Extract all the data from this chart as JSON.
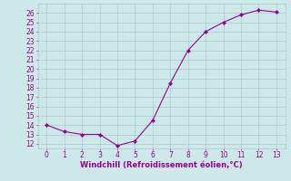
{
  "x": [
    0,
    1,
    2,
    3,
    4,
    5,
    6,
    7,
    8,
    9,
    10,
    11,
    12,
    13
  ],
  "y": [
    14.0,
    13.3,
    13.0,
    13.0,
    11.8,
    12.3,
    14.5,
    18.5,
    22.0,
    24.0,
    25.0,
    25.8,
    26.3,
    26.1
  ],
  "line_color": "#990099",
  "marker": "D",
  "marker_size": 2.0,
  "bg_color": "#cce8e8",
  "grid_color": "#aacccc",
  "xlabel": "Windchill (Refroidissement éolien,°C)",
  "xlabel_color": "#990099",
  "ylim": [
    11.5,
    27.0
  ],
  "xlim": [
    -0.5,
    13.5
  ],
  "ytick_min": 12,
  "ytick_max": 26,
  "xtick_min": 0,
  "xtick_max": 13,
  "tick_fontsize": 5.5,
  "xlabel_fontsize": 6.0,
  "xlabel_fontweight": "bold"
}
